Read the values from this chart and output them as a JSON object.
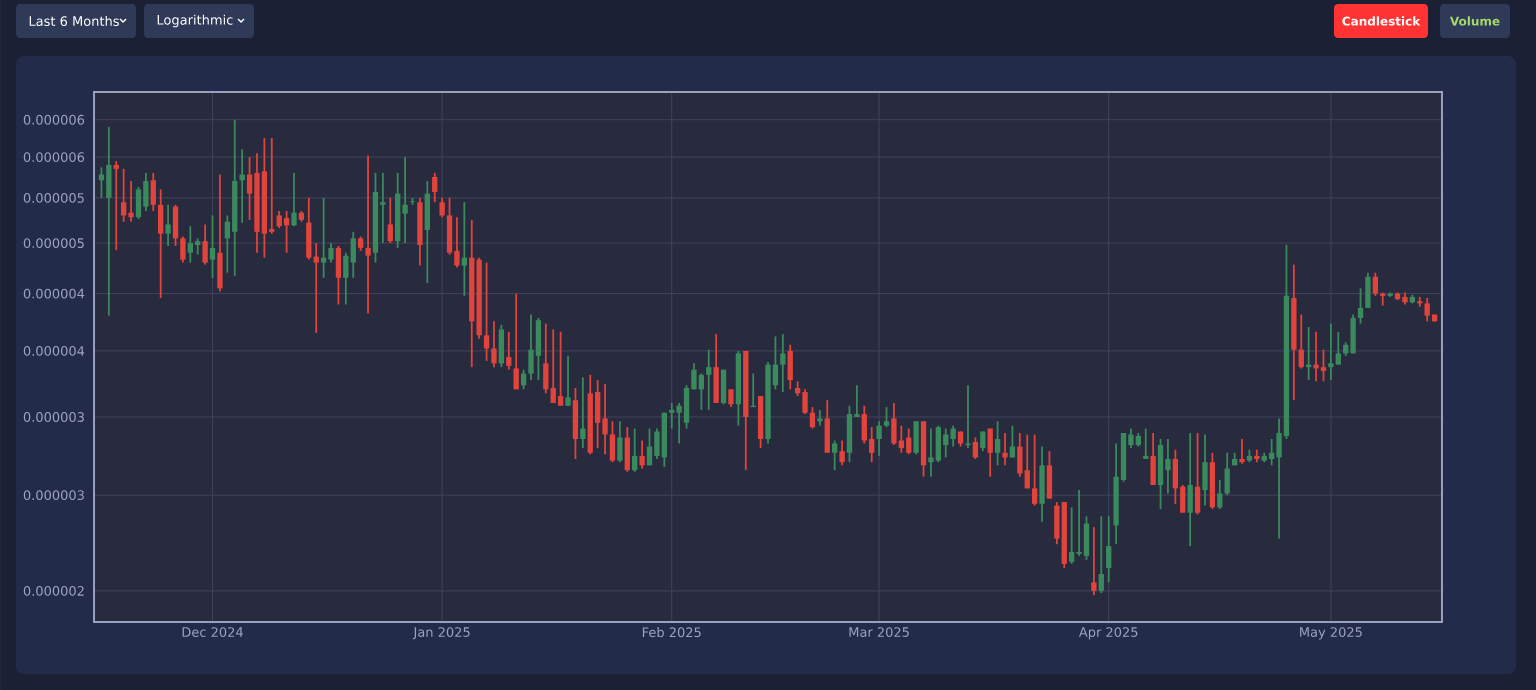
{
  "chart_data": {
    "type": "candlestick",
    "log": "y",
    "grid": true,
    "annotations": [
      "Last 6 Months",
      "Logarithmic",
      "Candlestick",
      "Volume"
    ],
    "xlim": [
      "2024-11-15",
      "2025-05-16"
    ],
    "xticks": [
      {
        "value": "2024-12-01",
        "label": "Dec 2024"
      },
      {
        "value": "2025-01-01",
        "label": "Jan 2025"
      },
      {
        "value": "2025-02-01",
        "label": "Feb 2025"
      },
      {
        "value": "2025-03-01",
        "label": "Mar 2025"
      },
      {
        "value": "2025-04-01",
        "label": "Apr 2025"
      },
      {
        "value": "2025-05-01",
        "label": "May 2025"
      }
    ],
    "ylim": [
      1.86e-06,
      6.4e-06
    ],
    "yticks": [
      {
        "value": 2e-06,
        "label": "0.000002"
      },
      {
        "value": 2.5e-06,
        "label": "0.000003"
      },
      {
        "value": 3e-06,
        "label": "0.000003"
      },
      {
        "value": 3.5e-06,
        "label": "0.000004"
      },
      {
        "value": 4e-06,
        "label": "0.000004"
      },
      {
        "value": 4.5e-06,
        "label": "0.000005"
      },
      {
        "value": 5e-06,
        "label": "0.000005"
      },
      {
        "value": 5.5e-06,
        "label": "0.000006"
      },
      {
        "value": 6e-06,
        "label": "0.000006"
      }
    ],
    "x": [
      "2024-11-16",
      "2024-11-17",
      "2024-11-18",
      "2024-11-19",
      "2024-11-20",
      "2024-11-21",
      "2024-11-22",
      "2024-11-23",
      "2024-11-24",
      "2024-11-25",
      "2024-11-26",
      "2024-11-27",
      "2024-11-28",
      "2024-11-29",
      "2024-11-30",
      "2024-12-01",
      "2024-12-02",
      "2024-12-03",
      "2024-12-04",
      "2024-12-05",
      "2024-12-06",
      "2024-12-07",
      "2024-12-08",
      "2024-12-09",
      "2024-12-10",
      "2024-12-11",
      "2024-12-12",
      "2024-12-13",
      "2024-12-14",
      "2024-12-15",
      "2024-12-16",
      "2024-12-17",
      "2024-12-18",
      "2024-12-19",
      "2024-12-20",
      "2024-12-21",
      "2024-12-22",
      "2024-12-23",
      "2024-12-24",
      "2024-12-25",
      "2024-12-26",
      "2024-12-27",
      "2024-12-28",
      "2024-12-29",
      "2024-12-30",
      "2024-12-31",
      "2025-01-01",
      "2025-01-02",
      "2025-01-03",
      "2025-01-04",
      "2025-01-05",
      "2025-01-06",
      "2025-01-07",
      "2025-01-08",
      "2025-01-09",
      "2025-01-10",
      "2025-01-11",
      "2025-01-12",
      "2025-01-13",
      "2025-01-14",
      "2025-01-15",
      "2025-01-16",
      "2025-01-17",
      "2025-01-18",
      "2025-01-19",
      "2025-01-20",
      "2025-01-21",
      "2025-01-22",
      "2025-01-23",
      "2025-01-24",
      "2025-01-25",
      "2025-01-26",
      "2025-01-27",
      "2025-01-28",
      "2025-01-29",
      "2025-01-30",
      "2025-01-31",
      "2025-02-01",
      "2025-02-02",
      "2025-02-03",
      "2025-02-04",
      "2025-02-05",
      "2025-02-06",
      "2025-02-07",
      "2025-02-08",
      "2025-02-09",
      "2025-02-10",
      "2025-02-11",
      "2025-02-12",
      "2025-02-13",
      "2025-02-14",
      "2025-02-15",
      "2025-02-16",
      "2025-02-17",
      "2025-02-18",
      "2025-02-19",
      "2025-02-20",
      "2025-02-21",
      "2025-02-22",
      "2025-02-23",
      "2025-02-24",
      "2025-02-25",
      "2025-02-26",
      "2025-02-27",
      "2025-02-28",
      "2025-03-01",
      "2025-03-02",
      "2025-03-03",
      "2025-03-04",
      "2025-03-05",
      "2025-03-06",
      "2025-03-07",
      "2025-03-08",
      "2025-03-09",
      "2025-03-10",
      "2025-03-11",
      "2025-03-12",
      "2025-03-13",
      "2025-03-14",
      "2025-03-15",
      "2025-03-16",
      "2025-03-17",
      "2025-03-18",
      "2025-03-19",
      "2025-03-20",
      "2025-03-21",
      "2025-03-22",
      "2025-03-23",
      "2025-03-24",
      "2025-03-25",
      "2025-03-26",
      "2025-03-27",
      "2025-03-28",
      "2025-03-29",
      "2025-03-30",
      "2025-03-31",
      "2025-04-01",
      "2025-04-02",
      "2025-04-03",
      "2025-04-04",
      "2025-04-05",
      "2025-04-06",
      "2025-04-07",
      "2025-04-08",
      "2025-04-09",
      "2025-04-10",
      "2025-04-11",
      "2025-04-12",
      "2025-04-13",
      "2025-04-14",
      "2025-04-15",
      "2025-04-16",
      "2025-04-17",
      "2025-04-18",
      "2025-04-19",
      "2025-04-20",
      "2025-04-21",
      "2025-04-22",
      "2025-04-23",
      "2025-04-24",
      "2025-04-25",
      "2025-04-26",
      "2025-04-27",
      "2025-04-28",
      "2025-04-29",
      "2025-04-30",
      "2025-05-01",
      "2025-05-02",
      "2025-05-03",
      "2025-05-04",
      "2025-05-05",
      "2025-05-06",
      "2025-05-07",
      "2025-05-08",
      "2025-05-09",
      "2025-05-10",
      "2025-05-11",
      "2025-05-12",
      "2025-05-13",
      "2025-05-14",
      "2025-05-15"
    ],
    "ohlc": [
      [
        5.21e-06,
        5.37e-06,
        5e-06,
        5.28e-06
      ],
      [
        5e-06,
        5.9e-06,
        3.8e-06,
        5.4e-06
      ],
      [
        5.4e-06,
        5.45e-06,
        4.43e-06,
        5.35e-06
      ],
      [
        4.95e-06,
        5.35e-06,
        4.73e-06,
        4.8e-06
      ],
      [
        4.83e-06,
        5.2e-06,
        4.73e-06,
        4.78e-06
      ],
      [
        4.78e-06,
        5.13e-06,
        4.76e-06,
        5.1e-06
      ],
      [
        4.9e-06,
        5.3e-06,
        4.85e-06,
        5.2e-06
      ],
      [
        5.21e-06,
        5.3e-06,
        4.85e-06,
        4.92e-06
      ],
      [
        4.92e-06,
        5.1e-06,
        3.96e-06,
        4.6e-06
      ],
      [
        4.6e-06,
        4.92e-06,
        4.47e-06,
        4.7e-06
      ],
      [
        4.9e-06,
        4.92e-06,
        4.47e-06,
        4.55e-06
      ],
      [
        4.55e-06,
        4.57e-06,
        4.3e-06,
        4.33e-06
      ],
      [
        4.4e-06,
        4.68e-06,
        4.3e-06,
        4.5e-06
      ],
      [
        4.48e-06,
        4.55e-06,
        4.38e-06,
        4.52e-06
      ],
      [
        4.52e-06,
        4.7e-06,
        4.28e-06,
        4.3e-06
      ],
      [
        4.33e-06,
        4.8e-06,
        4.15e-06,
        4.45e-06
      ],
      [
        4.4e-06,
        5.28e-06,
        4.02e-06,
        4.05e-06
      ],
      [
        4.55e-06,
        4.8e-06,
        4.2e-06,
        4.73e-06
      ],
      [
        4.62e-06,
        6e-06,
        4.17e-06,
        5.2e-06
      ],
      [
        5.21e-06,
        5.6e-06,
        4.72e-06,
        5.28e-06
      ],
      [
        5.28e-06,
        5.5e-06,
        4.75e-06,
        5.05e-06
      ],
      [
        5.3e-06,
        5.55e-06,
        4.4e-06,
        4.62e-06
      ],
      [
        5.32e-06,
        5.75e-06,
        4.35e-06,
        4.6e-06
      ],
      [
        4.65e-06,
        5.75e-06,
        4.6e-06,
        4.62e-06
      ],
      [
        4.8e-06,
        4.85e-06,
        4.66e-06,
        4.68e-06
      ],
      [
        4.77e-06,
        4.85e-06,
        4.4e-06,
        4.69e-06
      ],
      [
        4.69e-06,
        5.3e-06,
        4.68e-06,
        4.83e-06
      ],
      [
        4.83e-06,
        4.85e-06,
        4.73e-06,
        4.75e-06
      ],
      [
        4.72e-06,
        5e-06,
        4.33e-06,
        4.35e-06
      ],
      [
        4.36e-06,
        4.5e-06,
        3.65e-06,
        4.3e-06
      ],
      [
        4.3e-06,
        5e-06,
        4.15e-06,
        4.35e-06
      ],
      [
        4.33e-06,
        4.5e-06,
        4.3e-06,
        4.45e-06
      ],
      [
        4.45e-06,
        4.47e-06,
        3.9e-06,
        4.15e-06
      ],
      [
        4.15e-06,
        4.4e-06,
        3.9e-06,
        4.37e-06
      ],
      [
        4.3e-06,
        4.62e-06,
        4.15e-06,
        4.55e-06
      ],
      [
        4.55e-06,
        4.57e-06,
        4.42e-06,
        4.45e-06
      ],
      [
        4.45e-06,
        5.52e-06,
        3.82e-06,
        4.37e-06
      ],
      [
        4.4e-06,
        5.3e-06,
        4.3e-06,
        5.07e-06
      ],
      [
        4.92e-06,
        5.3e-06,
        4.5e-06,
        4.95e-06
      ],
      [
        4.7e-06,
        5e-06,
        4.5e-06,
        4.52e-06
      ],
      [
        4.52e-06,
        5.3e-06,
        4.45e-06,
        5.05e-06
      ],
      [
        4.82e-06,
        5.5e-06,
        4.5e-06,
        4.92e-06
      ],
      [
        4.95e-06,
        5e-06,
        4.92e-06,
        4.96e-06
      ],
      [
        4.95e-06,
        5e-06,
        4.27e-06,
        4.48e-06
      ],
      [
        4.64e-06,
        5.2e-06,
        4.1e-06,
        5.05e-06
      ],
      [
        5.25e-06,
        5.3e-06,
        4.95e-06,
        5.07e-06
      ],
      [
        4.95e-06,
        5e-06,
        4.78e-06,
        4.8e-06
      ],
      [
        4.8e-06,
        5e-06,
        4.38e-06,
        4.4e-06
      ],
      [
        4.42e-06,
        4.78e-06,
        4.25e-06,
        4.27e-06
      ],
      [
        4.27e-06,
        4.95e-06,
        3.98e-06,
        4.35e-06
      ],
      [
        4.35e-06,
        4.75e-06,
        3.37e-06,
        3.75e-06
      ],
      [
        4.33e-06,
        4.35e-06,
        3.6e-06,
        3.63e-06
      ],
      [
        3.63e-06,
        4.3e-06,
        3.42e-06,
        3.52e-06
      ],
      [
        3.52e-06,
        3.75e-06,
        3.37e-06,
        3.4e-06
      ],
      [
        3.4e-06,
        3.72e-06,
        3.37e-06,
        3.68e-06
      ],
      [
        3.45e-06,
        3.66e-06,
        3.35e-06,
        3.38e-06
      ],
      [
        3.36e-06,
        4e-06,
        3.2e-06,
        3.2e-06
      ],
      [
        3.23e-06,
        3.35e-06,
        3.2e-06,
        3.32e-06
      ],
      [
        3.32e-06,
        3.81e-06,
        3.27e-06,
        3.51e-06
      ],
      [
        3.46e-06,
        3.78e-06,
        3.27e-06,
        3.76e-06
      ],
      [
        3.4e-06,
        3.73e-06,
        3.17e-06,
        3.2e-06
      ],
      [
        3.21e-06,
        3.68e-06,
        3.1e-06,
        3.1e-06
      ],
      [
        3.15e-06,
        3.66e-06,
        3.08e-06,
        3.08e-06
      ],
      [
        3.08e-06,
        3.46e-06,
        3.08e-06,
        3.14e-06
      ],
      [
        3.12e-06,
        3.21e-06,
        2.72e-06,
        2.85e-06
      ],
      [
        2.85e-06,
        3.29e-06,
        2.79e-06,
        2.92e-06
      ],
      [
        3.17e-06,
        3.31e-06,
        2.75e-06,
        2.76e-06
      ],
      [
        3.18e-06,
        3.27e-06,
        2.79e-06,
        2.96e-06
      ],
      [
        2.99e-06,
        3.24e-06,
        2.75e-06,
        2.88e-06
      ],
      [
        2.88e-06,
        2.97e-06,
        2.7e-06,
        2.71e-06
      ],
      [
        2.71e-06,
        2.97e-06,
        2.7e-06,
        2.86e-06
      ],
      [
        2.86e-06,
        2.93e-06,
        2.64e-06,
        2.65e-06
      ],
      [
        2.65e-06,
        2.92e-06,
        2.64e-06,
        2.74e-06
      ],
      [
        2.74e-06,
        2.84e-06,
        2.66e-06,
        2.68e-06
      ],
      [
        2.68e-06,
        2.92e-06,
        2.68e-06,
        2.8e-06
      ],
      [
        2.74e-06,
        2.92e-06,
        2.72e-06,
        2.9e-06
      ],
      [
        2.73e-06,
        3.03e-06,
        2.67e-06,
        3.03e-06
      ],
      [
        3.03e-06,
        3.1e-06,
        2.92e-06,
        3.05e-06
      ],
      [
        3.03e-06,
        3.1e-06,
        2.82e-06,
        3.08e-06
      ],
      [
        2.96e-06,
        3.23e-06,
        2.92e-06,
        3.21e-06
      ],
      [
        3.2e-06,
        3.4e-06,
        3.2e-06,
        3.35e-06
      ],
      [
        3.2e-06,
        3.32e-06,
        3.05e-06,
        3.31e-06
      ],
      [
        3.31e-06,
        3.51e-06,
        3.05e-06,
        3.37e-06
      ],
      [
        3.37e-06,
        3.64e-06,
        3.1e-06,
        3.1e-06
      ],
      [
        3.1e-06,
        3.35e-06,
        3.09e-06,
        3.35e-06
      ],
      [
        3.2e-06,
        3.2e-06,
        3.07e-06,
        3.09e-06
      ],
      [
        3.09e-06,
        3.5e-06,
        2.94e-06,
        3.48e-06
      ],
      [
        3.5e-06,
        3.5e-06,
        2.65e-06,
        3e-06
      ],
      [
        3.07e-06,
        3.32e-06,
        3.07e-06,
        3.08e-06
      ],
      [
        3.15e-06,
        3.15e-06,
        2.79e-06,
        2.85e-06
      ],
      [
        2.85e-06,
        3.41e-06,
        2.82e-06,
        3.39e-06
      ],
      [
        3.23e-06,
        3.62e-06,
        3.2e-06,
        3.39e-06
      ],
      [
        3.39e-06,
        3.64e-06,
        3.18e-06,
        3.48e-06
      ],
      [
        3.5e-06,
        3.55e-06,
        3.2e-06,
        3.27e-06
      ],
      [
        3.21e-06,
        3.26e-06,
        3.15e-06,
        3.17e-06
      ],
      [
        3.18e-06,
        3.2e-06,
        3.02e-06,
        3.03e-06
      ],
      [
        3.03e-06,
        3.07e-06,
        2.92e-06,
        2.93e-06
      ],
      [
        2.97e-06,
        3.05e-06,
        2.94e-06,
        2.99e-06
      ],
      [
        2.99e-06,
        3.12e-06,
        2.76e-06,
        2.76e-06
      ],
      [
        2.76e-06,
        2.84e-06,
        2.65e-06,
        2.82e-06
      ],
      [
        2.77e-06,
        2.84e-06,
        2.68e-06,
        2.7e-06
      ],
      [
        2.76e-06,
        3.08e-06,
        2.7e-06,
        3.02e-06
      ],
      [
        3e-06,
        3.23e-06,
        3e-06,
        3.02e-06
      ],
      [
        3.02e-06,
        3.08e-06,
        2.82e-06,
        2.84e-06
      ],
      [
        2.85e-06,
        2.93e-06,
        2.7e-06,
        2.76e-06
      ],
      [
        2.85e-06,
        2.97e-06,
        2.74e-06,
        2.94e-06
      ],
      [
        2.94e-06,
        3.07e-06,
        2.93e-06,
        2.97e-06
      ],
      [
        2.99e-06,
        3.1e-06,
        2.81e-06,
        2.82e-06
      ],
      [
        2.84e-06,
        2.94e-06,
        2.76e-06,
        2.79e-06
      ],
      [
        2.86e-06,
        2.92e-06,
        2.75e-06,
        2.76e-06
      ],
      [
        2.76e-06,
        2.97e-06,
        2.75e-06,
        2.97e-06
      ],
      [
        2.97e-06,
        2.97e-06,
        2.61e-06,
        2.68e-06
      ],
      [
        2.7e-06,
        2.92e-06,
        2.61e-06,
        2.73e-06
      ],
      [
        2.71e-06,
        2.94e-06,
        2.7e-06,
        2.93e-06
      ],
      [
        2.81e-06,
        2.92e-06,
        2.73e-06,
        2.88e-06
      ],
      [
        2.85e-06,
        2.94e-06,
        2.8e-06,
        2.92e-06
      ],
      [
        2.9e-06,
        2.9e-06,
        2.8e-06,
        2.82e-06
      ],
      [
        2.81e-06,
        3.23e-06,
        2.79e-06,
        2.82e-06
      ],
      [
        2.83e-06,
        2.86e-06,
        2.72e-06,
        2.73e-06
      ],
      [
        2.79e-06,
        2.9e-06,
        2.77e-06,
        2.9e-06
      ],
      [
        2.92e-06,
        2.92e-06,
        2.61e-06,
        2.76e-06
      ],
      [
        2.76e-06,
        2.97e-06,
        2.68e-06,
        2.85e-06
      ],
      [
        2.76e-06,
        2.89e-06,
        2.68e-06,
        2.73e-06
      ],
      [
        2.73e-06,
        2.94e-06,
        2.73e-06,
        2.8e-06
      ],
      [
        2.8e-06,
        2.89e-06,
        2.61e-06,
        2.63e-06
      ],
      [
        2.65e-06,
        2.88e-06,
        2.54e-06,
        2.54e-06
      ],
      [
        2.54e-06,
        2.88e-06,
        2.44e-06,
        2.45e-06
      ],
      [
        2.45e-06,
        2.8e-06,
        2.35e-06,
        2.68e-06
      ],
      [
        2.68e-06,
        2.77e-06,
        2.48e-06,
        2.48e-06
      ],
      [
        2.44e-06,
        2.46e-06,
        2.23e-06,
        2.26e-06
      ],
      [
        2.46e-06,
        2.46e-06,
        2.11e-06,
        2.13e-06
      ],
      [
        2.14e-06,
        2.43e-06,
        2.13e-06,
        2.19e-06
      ],
      [
        2.18e-06,
        2.53e-06,
        2.17e-06,
        2.19e-06
      ],
      [
        2.17e-06,
        2.38e-06,
        2.15e-06,
        2.34e-06
      ],
      [
        2.04e-06,
        2.32e-06,
        1.98e-06,
        2e-06
      ],
      [
        2e-06,
        2.38e-06,
        1.99e-06,
        2.08e-06
      ],
      [
        2.11e-06,
        2.38e-06,
        2.04e-06,
        2.22e-06
      ],
      [
        2.33e-06,
        2.82e-06,
        2.23e-06,
        2.61e-06
      ],
      [
        2.59e-06,
        2.89e-06,
        2.58e-06,
        2.89e-06
      ],
      [
        2.81e-06,
        2.92e-06,
        2.79e-06,
        2.88e-06
      ],
      [
        2.81e-06,
        2.89e-06,
        2.8e-06,
        2.87e-06
      ],
      [
        2.72e-06,
        2.92e-06,
        2.72e-06,
        2.74e-06
      ],
      [
        2.74e-06,
        2.89e-06,
        2.56e-06,
        2.56e-06
      ],
      [
        2.56e-06,
        2.85e-06,
        2.42e-06,
        2.81e-06
      ],
      [
        2.65e-06,
        2.85e-06,
        2.51e-06,
        2.72e-06
      ],
      [
        2.72e-06,
        2.78e-06,
        2.45e-06,
        2.54e-06
      ],
      [
        2.55e-06,
        2.56e-06,
        2.4e-06,
        2.4e-06
      ],
      [
        2.4e-06,
        2.89e-06,
        2.22e-06,
        2.56e-06
      ],
      [
        2.55e-06,
        2.89e-06,
        2.39e-06,
        2.4e-06
      ],
      [
        2.53e-06,
        2.88e-06,
        2.44e-06,
        2.7e-06
      ],
      [
        2.7e-06,
        2.76e-06,
        2.42e-06,
        2.43e-06
      ],
      [
        2.43e-06,
        2.59e-06,
        2.42e-06,
        2.51e-06
      ],
      [
        2.51e-06,
        2.76e-06,
        2.5e-06,
        2.66e-06
      ],
      [
        2.68e-06,
        2.76e-06,
        2.68e-06,
        2.72e-06
      ],
      [
        2.72e-06,
        2.85e-06,
        2.69e-06,
        2.7e-06
      ],
      [
        2.71e-06,
        2.78e-06,
        2.7e-06,
        2.74e-06
      ],
      [
        2.74e-06,
        2.78e-06,
        2.7e-06,
        2.72e-06
      ],
      [
        2.71e-06,
        2.76e-06,
        2.7e-06,
        2.74e-06
      ],
      [
        2.72e-06,
        2.85e-06,
        2.68e-06,
        2.76e-06
      ],
      [
        2.73e-06,
        2.99e-06,
        2.26e-06,
        2.89e-06
      ],
      [
        2.87e-06,
        4.48e-06,
        2.85e-06,
        3.98e-06
      ],
      [
        3.96e-06,
        4.28e-06,
        3.12e-06,
        3.51e-06
      ],
      [
        3.51e-06,
        3.81e-06,
        3.36e-06,
        3.37e-06
      ],
      [
        3.37e-06,
        3.7e-06,
        3.27e-06,
        3.39e-06
      ],
      [
        3.39e-06,
        3.66e-06,
        3.26e-06,
        3.36e-06
      ],
      [
        3.37e-06,
        3.51e-06,
        3.26e-06,
        3.34e-06
      ],
      [
        3.37e-06,
        3.73e-06,
        3.27e-06,
        3.4e-06
      ],
      [
        3.39e-06,
        3.66e-06,
        3.39e-06,
        3.48e-06
      ],
      [
        3.48e-06,
        3.57e-06,
        3.46e-06,
        3.55e-06
      ],
      [
        3.48e-06,
        3.81e-06,
        3.48e-06,
        3.78e-06
      ],
      [
        3.78e-06,
        4.05e-06,
        3.73e-06,
        3.87e-06
      ],
      [
        3.87e-06,
        4.2e-06,
        3.87e-06,
        4.16e-06
      ],
      [
        4.16e-06,
        4.2e-06,
        3.98e-06,
        4e-06
      ],
      [
        4e-06,
        4.01e-06,
        3.89e-06,
        3.98e-06
      ],
      [
        3.98e-06,
        4.01e-06,
        3.97e-06,
        4e-06
      ],
      [
        4e-06,
        4.01e-06,
        3.94e-06,
        3.95e-06
      ],
      [
        3.97e-06,
        4.01e-06,
        3.9e-06,
        3.92e-06
      ],
      [
        3.92e-06,
        3.99e-06,
        3.91e-06,
        3.97e-06
      ],
      [
        3.93e-06,
        3.97e-06,
        3.88e-06,
        3.91e-06
      ],
      [
        3.91e-06,
        3.96e-06,
        3.75e-06,
        3.8e-06
      ],
      [
        3.81e-06,
        3.81e-06,
        3.75e-06,
        3.75e-06
      ]
    ]
  }
}
